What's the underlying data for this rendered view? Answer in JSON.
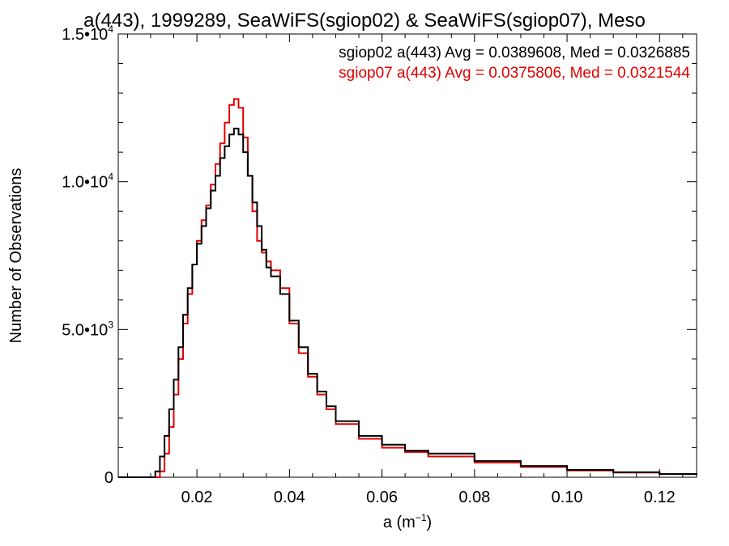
{
  "chart_data": {
    "type": "line",
    "title": "a(443), 1999289, SeaWiFS(sgiop02) & SeaWiFS(sgiop07), Meso",
    "xlabel": {
      "base": "a (m",
      "sup": "−1",
      "tail": ")"
    },
    "ylabel": "Number of Observations",
    "xlim": [
      0.003,
      0.128
    ],
    "ylim": [
      0,
      15000
    ],
    "x_ticks": [
      0.02,
      0.04,
      0.06,
      0.08,
      0.1,
      0.12
    ],
    "x_tick_labels": [
      "0.02",
      "0.04",
      "0.06",
      "0.08",
      "0.10",
      "0.12"
    ],
    "y_ticks": [
      {
        "value": 0,
        "mant": "0",
        "exp": ""
      },
      {
        "value": 5000,
        "mant": "5.0•10",
        "exp": "3"
      },
      {
        "value": 10000,
        "mant": "1.0•10",
        "exp": "4"
      },
      {
        "value": 15000,
        "mant": "1.5•10",
        "exp": "4"
      }
    ],
    "series": [
      {
        "name": "sgiop02",
        "legend": "sgiop02 a(443) Avg = 0.0389608, Med = 0.0326885",
        "color": "#000000",
        "x": [
          0.01,
          0.011,
          0.012,
          0.013,
          0.014,
          0.015,
          0.016,
          0.017,
          0.018,
          0.019,
          0.02,
          0.021,
          0.022,
          0.023,
          0.024,
          0.025,
          0.026,
          0.027,
          0.028,
          0.029,
          0.03,
          0.031,
          0.032,
          0.033,
          0.034,
          0.035,
          0.036,
          0.038,
          0.04,
          0.042,
          0.044,
          0.046,
          0.048,
          0.05,
          0.055,
          0.06,
          0.065,
          0.07,
          0.08,
          0.09,
          0.1,
          0.11,
          0.12,
          0.128
        ],
        "values": [
          0,
          200,
          700,
          1400,
          2300,
          3300,
          4400,
          5500,
          6400,
          7200,
          7900,
          8500,
          9100,
          9700,
          10200,
          10800,
          11200,
          11600,
          11800,
          11600,
          11000,
          10200,
          9300,
          8500,
          7700,
          7100,
          6800,
          6200,
          5300,
          4400,
          3500,
          2900,
          2400,
          1900,
          1400,
          1100,
          900,
          800,
          550,
          380,
          250,
          170,
          110,
          80
        ]
      },
      {
        "name": "sgiop07",
        "legend": "sgiop07 a(443) Avg = 0.0375806, Med = 0.0321544",
        "color": "#e00000",
        "x": [
          0.011,
          0.012,
          0.013,
          0.014,
          0.015,
          0.016,
          0.017,
          0.018,
          0.019,
          0.02,
          0.021,
          0.022,
          0.023,
          0.024,
          0.025,
          0.026,
          0.027,
          0.028,
          0.029,
          0.03,
          0.031,
          0.032,
          0.033,
          0.034,
          0.035,
          0.036,
          0.038,
          0.04,
          0.042,
          0.044,
          0.046,
          0.048,
          0.05,
          0.055,
          0.06,
          0.065,
          0.07,
          0.08,
          0.09,
          0.1,
          0.11,
          0.12,
          0.128
        ],
        "values": [
          0,
          200,
          800,
          1700,
          2800,
          4000,
          5200,
          6200,
          7200,
          8000,
          8700,
          9200,
          9900,
          10600,
          11300,
          12000,
          12600,
          12800,
          12500,
          11500,
          10200,
          9000,
          8000,
          7600,
          7300,
          7000,
          6400,
          5200,
          4200,
          3400,
          2800,
          2300,
          1800,
          1300,
          1000,
          850,
          700,
          500,
          350,
          230,
          160,
          110,
          80
        ]
      }
    ],
    "legend_position": "top-right",
    "grid": false
  }
}
